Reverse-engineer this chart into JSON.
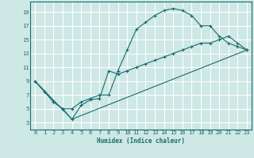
{
  "xlabel": "Humidex (Indice chaleur)",
  "bg_color": "#cde8e5",
  "line_color": "#1a6b6b",
  "grid_color": "#ffffff",
  "xlim": [
    -0.5,
    23.5
  ],
  "ylim": [
    2.0,
    20.5
  ],
  "xticks": [
    0,
    1,
    2,
    3,
    4,
    5,
    6,
    7,
    8,
    9,
    10,
    11,
    12,
    13,
    14,
    15,
    16,
    17,
    18,
    19,
    20,
    21,
    22,
    23
  ],
  "yticks": [
    3,
    5,
    7,
    9,
    11,
    13,
    15,
    17,
    19
  ],
  "curve1_x": [
    0,
    1,
    2,
    3,
    4,
    5,
    6,
    7,
    8,
    9,
    10,
    11,
    12,
    13,
    14,
    15,
    16,
    17,
    18,
    19,
    20,
    21,
    22,
    23
  ],
  "curve1_y": [
    9,
    7.5,
    6,
    5,
    5,
    6,
    6.5,
    7,
    7,
    10.5,
    13.5,
    16.5,
    17.5,
    18.5,
    19.2,
    19.5,
    19.2,
    18.5,
    17,
    17,
    15.5,
    14.5,
    14,
    13.5
  ],
  "curve2_x": [
    0,
    1,
    2,
    3,
    4,
    5,
    6,
    7,
    8,
    9,
    10,
    11,
    12,
    13,
    14,
    15,
    16,
    17,
    18,
    19,
    20,
    21,
    22,
    23
  ],
  "curve2_y": [
    9,
    7.5,
    6,
    5,
    3.5,
    5.5,
    6.3,
    6.5,
    10.5,
    10,
    10.5,
    11,
    11.5,
    12,
    12.5,
    13,
    13.5,
    14,
    14.5,
    14.5,
    15,
    15.5,
    14.5,
    13.5
  ],
  "curve3_x": [
    0,
    4,
    23
  ],
  "curve3_y": [
    9,
    3.5,
    13.5
  ]
}
